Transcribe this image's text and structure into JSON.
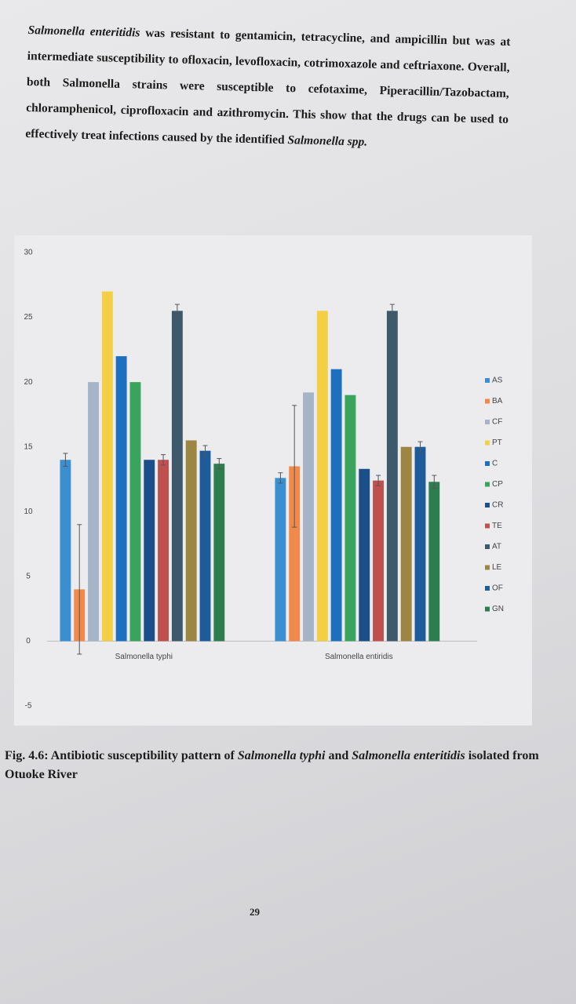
{
  "paragraph": [
    "Salmonella enteritidis",
    "was resistant to gentamicin, tetracycline, and ampicillin but was at intermediate susceptibility to ofloxacin, levofloxacin, cotrimoxazole and ceftriaxone. Overall, both Salmonella strains were susceptible to cefotaxime, Piperacillin/Tazobactam, chloramphenicol, ciprofloxacin and azithromycin. This show that the drugs can be used to effectively treat infections caused by the identified",
    "Salmonella spp."
  ],
  "chart_data": {
    "type": "bar",
    "categories": [
      "Salmonella typhi",
      "Salmonella entiridis"
    ],
    "series": [
      {
        "name": "AS",
        "color": "#3a8fd0",
        "values": [
          14,
          12.6
        ],
        "errors": [
          0.5,
          0.4
        ]
      },
      {
        "name": "BA",
        "color": "#f08a4b",
        "values": [
          4,
          13.5
        ],
        "errors": [
          5,
          4.7
        ]
      },
      {
        "name": "CF",
        "color": "#a5b4c6",
        "values": [
          20,
          19.2
        ],
        "errors": [
          0,
          0
        ]
      },
      {
        "name": "PT",
        "color": "#f2cf45",
        "values": [
          27,
          25.5
        ],
        "errors": [
          0,
          0
        ]
      },
      {
        "name": "C",
        "color": "#1f6fbf",
        "values": [
          22,
          21
        ],
        "errors": [
          0,
          0
        ]
      },
      {
        "name": "CP",
        "color": "#3aa35c",
        "values": [
          20,
          19
        ],
        "errors": [
          0,
          0
        ]
      },
      {
        "name": "CR",
        "color": "#1a4f8a",
        "values": [
          14,
          13.3
        ],
        "errors": [
          0,
          0
        ]
      },
      {
        "name": "TE",
        "color": "#c0504d",
        "values": [
          14,
          12.4
        ],
        "errors": [
          0.4,
          0.4
        ]
      },
      {
        "name": "AT",
        "color": "#3d5a6c",
        "values": [
          25.5,
          25.5
        ],
        "errors": [
          0.5,
          0.5
        ]
      },
      {
        "name": "LE",
        "color": "#9c8641",
        "values": [
          15.5,
          15
        ],
        "errors": [
          0,
          0
        ]
      },
      {
        "name": "OF",
        "color": "#1e5b9a",
        "values": [
          14.7,
          15
        ],
        "errors": [
          0.4,
          0.4
        ]
      },
      {
        "name": "GN",
        "color": "#2e7d4f",
        "values": [
          13.7,
          12.3
        ],
        "errors": [
          0.4,
          0.5
        ]
      }
    ],
    "ylim": [
      -5,
      30
    ],
    "yticks": [
      -5,
      0,
      5,
      10,
      15,
      20,
      25,
      30
    ],
    "grid": false,
    "legend": "right"
  },
  "caption": [
    "Fig. 4.6: Antibiotic susceptibility pattern of",
    "Salmonella typhi",
    "and",
    "Salmonella enteritidis",
    "isolated from Otuoke River"
  ],
  "page_number": "29"
}
